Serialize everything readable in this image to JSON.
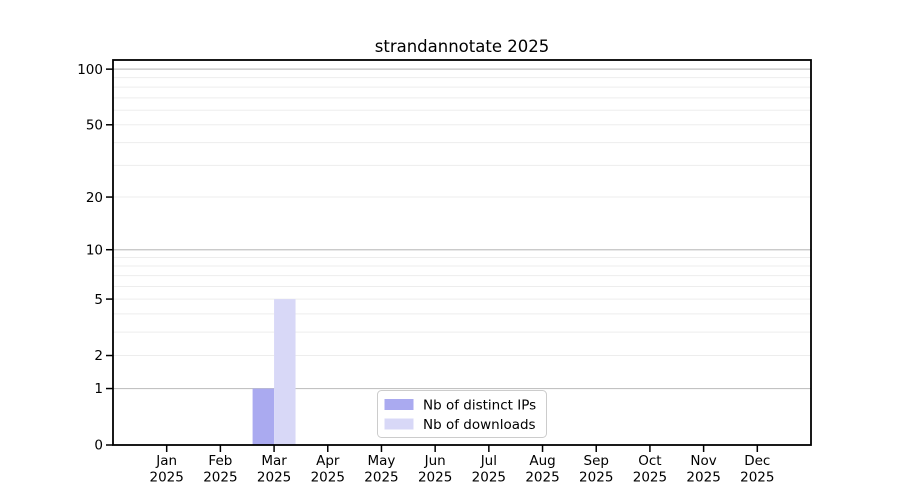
{
  "chart_data": {
    "type": "bar",
    "title": "strandannotate 2025",
    "x_tick_labels": [
      {
        "top": "Jan",
        "bottom": "2025"
      },
      {
        "top": "Feb",
        "bottom": "2025"
      },
      {
        "top": "Mar",
        "bottom": "2025"
      },
      {
        "top": "Apr",
        "bottom": "2025"
      },
      {
        "top": "May",
        "bottom": "2025"
      },
      {
        "top": "Jun",
        "bottom": "2025"
      },
      {
        "top": "Jul",
        "bottom": "2025"
      },
      {
        "top": "Aug",
        "bottom": "2025"
      },
      {
        "top": "Sep",
        "bottom": "2025"
      },
      {
        "top": "Oct",
        "bottom": "2025"
      },
      {
        "top": "Nov",
        "bottom": "2025"
      },
      {
        "top": "Dec",
        "bottom": "2025"
      }
    ],
    "series": [
      {
        "name": "Nb of distinct IPs",
        "color": "#aaaaf0",
        "values": [
          0,
          0,
          1,
          0,
          0,
          0,
          0,
          0,
          0,
          0,
          0,
          0
        ]
      },
      {
        "name": "Nb of downloads",
        "color": "#d8d8f7",
        "values": [
          0,
          0,
          5,
          0,
          0,
          0,
          0,
          0,
          0,
          0,
          0,
          0
        ]
      }
    ],
    "y_axis": {
      "scale": "log1p",
      "max": 112,
      "ticks": [
        0,
        1,
        2,
        5,
        10,
        20,
        50,
        100
      ],
      "major_gridlines": [
        1,
        10,
        100
      ],
      "minor_gridlines": [
        2,
        3,
        4,
        5,
        6,
        7,
        8,
        9,
        20,
        30,
        40,
        50,
        60,
        70,
        80,
        90
      ]
    },
    "legend": {
      "position": "lower center",
      "entries": [
        "Nb of distinct IPs",
        "Nb of downloads"
      ]
    },
    "colors": {
      "bar_distinct_ips": "#aaaaf0",
      "bar_downloads": "#d8d8f7",
      "grid_major": "#c2c2c2",
      "grid_minor": "#ededed",
      "axis": "#000000",
      "text": "#000000",
      "legend_border": "#cccccc",
      "legend_background": "#ffffff",
      "background": "#ffffff"
    }
  }
}
